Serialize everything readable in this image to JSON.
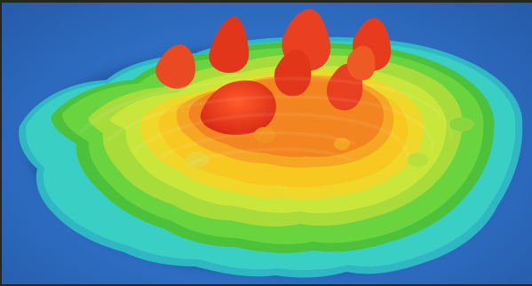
{
  "image": {
    "subject": "topographic-island-render",
    "colors": {
      "water": "#2f6fc4",
      "shelf": "#34c7c3",
      "low": "#5fcf3e",
      "mid": "#c9e63a",
      "high": "#f7d21e",
      "higher": "#f2911f",
      "peak": "#e2361a",
      "frame": "#262626"
    }
  }
}
